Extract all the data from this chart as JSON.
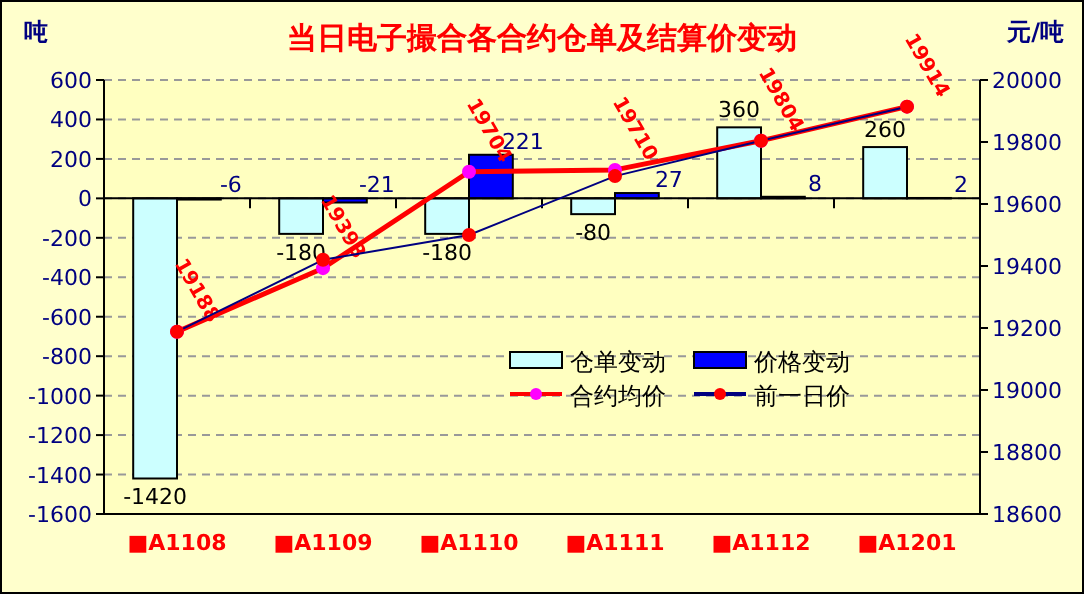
{
  "chart_data": {
    "type": "bar",
    "title": "当日电子撮合各合约仓单及结算价变动",
    "ylabel": "吨",
    "y2label": "元/吨",
    "categories": [
      "■A1108",
      "■A1109",
      "■A1110",
      "■A1111",
      "■A1112",
      "■A1201"
    ],
    "series": [
      {
        "name": "仓单变动",
        "color": "#ccffff",
        "values": [
          -1420,
          -180,
          -180,
          -80,
          360,
          260
        ],
        "value_labels": [
          "-1420",
          "-180",
          "-180",
          "-80",
          "360",
          "260"
        ]
      },
      {
        "name": "价格变动",
        "color": "#0000ff",
        "values": [
          -6,
          -21,
          221,
          27,
          8,
          2
        ],
        "value_labels": [
          "-6",
          "-21",
          "221",
          "27",
          "8",
          "2"
        ]
      },
      {
        "name": "合约均价",
        "type": "line",
        "axis": "y2",
        "color": "#ff0000",
        "values": [
          19188,
          19393,
          19704,
          19710,
          19804,
          19914
        ],
        "value_labels": [
          "19188",
          "19393",
          "19704",
          "19710",
          "19804",
          "19914"
        ]
      },
      {
        "name": "前一日价",
        "type": "line",
        "axis": "y2",
        "color": "#000080",
        "values": [
          19188,
          19420,
          19500,
          19690,
          19804,
          19914
        ]
      }
    ],
    "ylim": [
      -1600,
      600
    ],
    "yticks": [
      -1600,
      -1400,
      -1200,
      -1000,
      -800,
      -600,
      -400,
      -200,
      0,
      200,
      400,
      600
    ],
    "y2lim": [
      18600,
      20000
    ],
    "y2ticks": [
      18600,
      18800,
      19000,
      19200,
      19400,
      19600,
      19800,
      20000
    ],
    "grid": "y",
    "legend": "bottom right",
    "marker": "circle"
  }
}
